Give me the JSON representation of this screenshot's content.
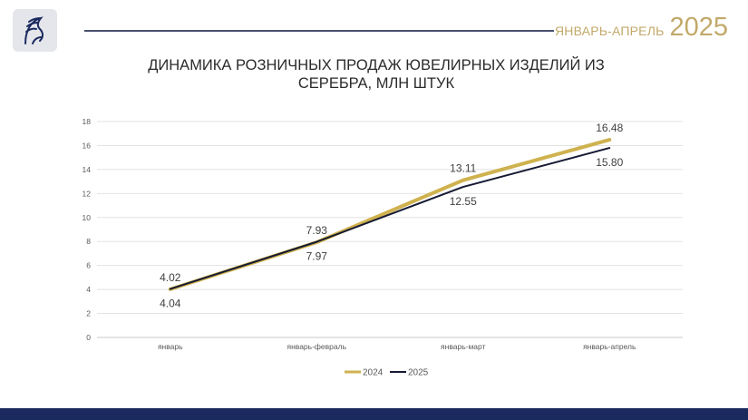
{
  "header": {
    "period_label": "ЯНВАРЬ-АПРЕЛЬ",
    "period_year": "2025"
  },
  "colors": {
    "series_2024": "#cfb24f",
    "series_2025": "#151a33",
    "accent_gold": "#c2a96a",
    "footer_navy": "#1b2a5e"
  },
  "chart_data": {
    "type": "line",
    "title": "ДИНАМИКА РОЗНИЧНЫХ ПРОДАЖ ЮВЕЛИРНЫХ ИЗДЕЛИЙ ИЗ СЕРЕБРА, МЛН ШТУК",
    "categories": [
      "январь",
      "январь-февраль",
      "январь-март",
      "январь-апрель"
    ],
    "series": [
      {
        "name": "2024",
        "values": [
          4.02,
          7.93,
          13.11,
          16.48
        ],
        "color": "#cfb24f"
      },
      {
        "name": "2025",
        "values": [
          4.04,
          7.97,
          12.55,
          15.8
        ],
        "color": "#151a33"
      }
    ],
    "data_labels": {
      "2024": [
        "4.02",
        "7.93",
        "13.11",
        "16.48"
      ],
      "2025": [
        "4.04",
        "7.97",
        "12.55",
        "15.80"
      ]
    },
    "ylim": [
      0,
      18
    ],
    "yticks": [
      0,
      2,
      4,
      6,
      8,
      10,
      12,
      14,
      16,
      18
    ],
    "grid": true,
    "legend_position": "bottom"
  }
}
